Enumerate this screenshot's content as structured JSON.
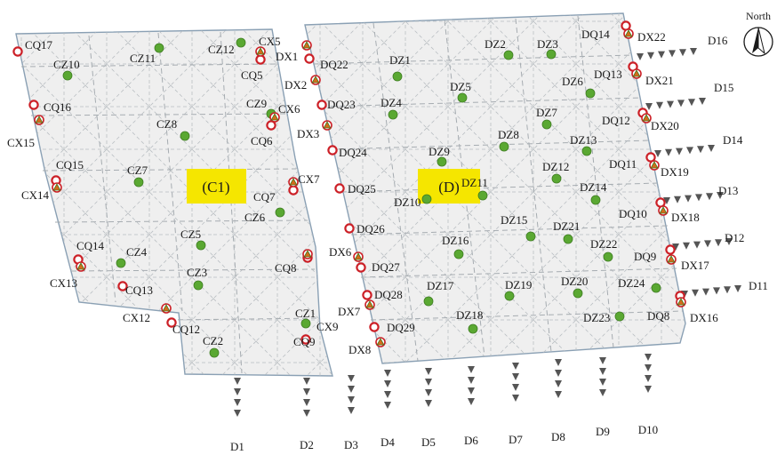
{
  "zones": [
    {
      "id": "c1",
      "label": "(C1)"
    },
    {
      "id": "d",
      "label": "(D)"
    }
  ],
  "compass": {
    "label": "North",
    "icon": "north-arrow-icon"
  },
  "legend_colors": {
    "cz_dz_point": "#5aa832",
    "cq_dq_point": "#cc2027",
    "cx_dx_point": "#d56a1b",
    "highlight": "#f5e600",
    "triangle": "#555555"
  },
  "cz_labels": [
    "CZ1",
    "CZ2",
    "CZ3",
    "CZ4",
    "CZ5",
    "CZ6",
    "CZ7",
    "CZ8",
    "CZ9",
    "CZ10",
    "CZ11",
    "CZ12"
  ],
  "cq_labels": [
    "CQ5",
    "CQ6",
    "CQ7",
    "CQ8",
    "CQ9",
    "CQ12",
    "CQ13",
    "CQ14",
    "CQ15",
    "CQ16",
    "CQ17"
  ],
  "cx_labels": [
    "CX5",
    "CX6",
    "CX7",
    "CX9",
    "CX12",
    "CX13",
    "CX14",
    "CX15"
  ],
  "dz_labels": [
    "DZ1",
    "DZ2",
    "DZ3",
    "DZ4",
    "DZ5",
    "DZ6",
    "DZ7",
    "DZ8",
    "DZ9",
    "DZ10",
    "DZ11",
    "DZ12",
    "DZ13",
    "DZ14",
    "DZ15",
    "DZ16",
    "DZ17",
    "DZ18",
    "DZ19",
    "DZ20",
    "DZ21",
    "DZ22",
    "DZ23",
    "DZ24"
  ],
  "dq_labels": [
    "DQ8",
    "DQ9",
    "DQ10",
    "DQ11",
    "DQ12",
    "DQ13",
    "DQ14",
    "DQ22",
    "DQ23",
    "DQ24",
    "DQ25",
    "DQ26",
    "DQ27",
    "DQ28",
    "DQ29"
  ],
  "dx_labels": [
    "DX1",
    "DX2",
    "DX3",
    "DX6",
    "DX7",
    "DX8",
    "DX16",
    "DX17",
    "DX18",
    "DX19",
    "DX20",
    "DX21",
    "DX22"
  ],
  "d_lines_south": [
    "D1",
    "D2",
    "D3",
    "D4",
    "D5",
    "D6",
    "D7",
    "D8",
    "D9",
    "D10"
  ],
  "d_lines_east": [
    "D11",
    "D12",
    "D13",
    "D14",
    "D15",
    "D16"
  ]
}
